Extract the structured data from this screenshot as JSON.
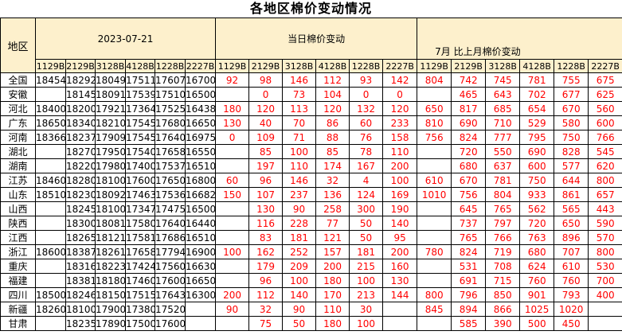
{
  "title": "各地区棉价变动情况",
  "colors": {
    "header_bg": "#FDF0CC",
    "change_text": "#FF0000",
    "price_text": "#000000",
    "border": "#000000",
    "background": "#FFFFFF"
  },
  "chart_data": {
    "type": "table",
    "title": "各地区棉价变动情况",
    "region_header": "地区",
    "group_headers": [
      "2023-07-21",
      "当日棉价变动",
      "7月 比上月棉价变动"
    ],
    "grade_columns": [
      "1129B",
      "2129B",
      "3128B",
      "4128B",
      "1228B",
      "2227B"
    ],
    "rows": [
      {
        "region": "全国",
        "prices": [
          "18454",
          "18292",
          "18049",
          "17511",
          "17607",
          "16700"
        ],
        "daily_change": [
          "92",
          "98",
          "146",
          "112",
          "93",
          "142"
        ],
        "monthly_change": [
          "804",
          "742",
          "745",
          "781",
          "755",
          "675"
        ]
      },
      {
        "region": "安徽",
        "prices": [
          "",
          "18145",
          "18091",
          "17539",
          "17510",
          "16500"
        ],
        "daily_change": [
          "",
          "0",
          "73",
          "104",
          "0",
          "0"
        ],
        "monthly_change": [
          "",
          "465",
          "643",
          "702",
          "677",
          "625"
        ]
      },
      {
        "region": "河北",
        "prices": [
          "18400",
          "18200",
          "17921",
          "17364",
          "17525",
          "16438"
        ],
        "daily_change": [
          "180",
          "120",
          "113",
          "120",
          "132",
          "120"
        ],
        "monthly_change": [
          "650",
          "817",
          "685",
          "654",
          "670",
          "560"
        ]
      },
      {
        "region": "广东",
        "prices": [
          "18650",
          "18340",
          "18210",
          "17545",
          "17680",
          "16650"
        ],
        "daily_change": [
          "130",
          "40",
          "70",
          "86",
          "60",
          "233"
        ],
        "monthly_change": [
          "810",
          "690",
          "710",
          "529",
          "580",
          "600"
        ]
      },
      {
        "region": "河南",
        "prices": [
          "18366",
          "18237",
          "17909",
          "17545",
          "17640",
          "16975"
        ],
        "daily_change": [
          "0",
          "109",
          "71",
          "88",
          "76",
          "158"
        ],
        "monthly_change": [
          "756",
          "824",
          "777",
          "795",
          "750",
          "766"
        ]
      },
      {
        "region": "湖北",
        "prices": [
          "",
          "18270",
          "17950",
          "17540",
          "17658",
          "16550"
        ],
        "daily_change": [
          "",
          "85",
          "100",
          "85",
          "78",
          "110"
        ],
        "monthly_change": [
          "",
          "720",
          "550",
          "690",
          "828",
          "545"
        ]
      },
      {
        "region": "湖南",
        "prices": [
          "",
          "18220",
          "17980",
          "17400",
          "17537",
          "16510"
        ],
        "daily_change": [
          "",
          "197",
          "110",
          "174",
          "167",
          "200"
        ],
        "monthly_change": [
          "",
          "680",
          "637",
          "600",
          "577",
          "620"
        ]
      },
      {
        "region": "江苏",
        "prices": [
          "18460",
          "18280",
          "18100",
          "17600",
          "17650",
          "16800"
        ],
        "daily_change": [
          "60",
          "96",
          "146",
          "32",
          "4",
          "100"
        ],
        "monthly_change": [
          "610",
          "670",
          "781",
          "750",
          "644",
          "800"
        ]
      },
      {
        "region": "山东",
        "prices": [
          "18510",
          "18230",
          "18092",
          "17463",
          "17536",
          "16682"
        ],
        "daily_change": [
          "150",
          "107",
          "237",
          "136",
          "124",
          "169"
        ],
        "monthly_change": [
          "1010",
          "756",
          "804",
          "933",
          "861",
          "657"
        ]
      },
      {
        "region": "山西",
        "prices": [
          "",
          "18245",
          "18100",
          "17347",
          "17475",
          "16500"
        ],
        "daily_change": [
          "",
          "130",
          "90",
          "258",
          "300",
          "190"
        ],
        "monthly_change": [
          "",
          "645",
          "765",
          "562",
          "565",
          "443"
        ]
      },
      {
        "region": "陕西",
        "prices": [
          "",
          "18300",
          "18081",
          "17580",
          "17640",
          "16440"
        ],
        "daily_change": [
          "",
          "116",
          "228",
          "77",
          "50",
          "140"
        ],
        "monthly_change": [
          "",
          "737",
          "797",
          "720",
          "650",
          "590"
        ]
      },
      {
        "region": "江西",
        "prices": [
          "",
          "18265",
          "18121",
          "17581",
          "17686",
          "16510"
        ],
        "daily_change": [
          "",
          "83",
          "181",
          "121",
          "50",
          "95"
        ],
        "monthly_change": [
          "",
          "765",
          "766",
          "763",
          "896",
          "570"
        ]
      },
      {
        "region": "浙江",
        "prices": [
          "18600",
          "18387",
          "18261",
          "17658",
          "17794",
          "16900"
        ],
        "daily_change": [
          "100",
          "162",
          "252",
          "157",
          "181",
          "200"
        ],
        "monthly_change": [
          "780",
          "824",
          "719",
          "680",
          "707",
          "800"
        ]
      },
      {
        "region": "重庆",
        "prices": [
          "",
          "18316",
          "18223",
          "17424",
          "17560",
          "16630"
        ],
        "daily_change": [
          "",
          "179",
          "209",
          "200",
          "215",
          "160"
        ],
        "monthly_change": [
          "",
          "531",
          "708",
          "624",
          "610",
          "530"
        ]
      },
      {
        "region": "福建",
        "prices": [
          "",
          "18381",
          "18180",
          "17460",
          "17600",
          "16650"
        ],
        "daily_change": [
          "",
          "96",
          "100",
          "180",
          "100",
          "130"
        ],
        "monthly_change": [
          "",
          "691",
          "715",
          "760",
          "760",
          "700"
        ]
      },
      {
        "region": "四川",
        "prices": [
          "18500",
          "18246",
          "18150",
          "17515",
          "17643",
          "16300"
        ],
        "daily_change": [
          "200",
          "112",
          "140",
          "170",
          "213",
          "144"
        ],
        "monthly_change": [
          "800",
          "796",
          "850",
          "901",
          "793",
          "400"
        ]
      },
      {
        "region": "新疆",
        "prices": [
          "18260",
          "18100",
          "17900",
          "17380",
          "17520",
          ""
        ],
        "daily_change": [
          "90",
          "32",
          "90",
          "110",
          "30",
          ""
        ],
        "monthly_change": [
          "845",
          "894",
          "866",
          "1025",
          "1020",
          ""
        ]
      },
      {
        "region": "甘肃",
        "prices": [
          "",
          "18235",
          "17890",
          "17500",
          "17600",
          ""
        ],
        "daily_change": [
          "",
          "75",
          "50",
          "180",
          "100",
          ""
        ],
        "monthly_change": [
          "",
          "585",
          "390",
          "500",
          "450",
          ""
        ]
      }
    ]
  }
}
